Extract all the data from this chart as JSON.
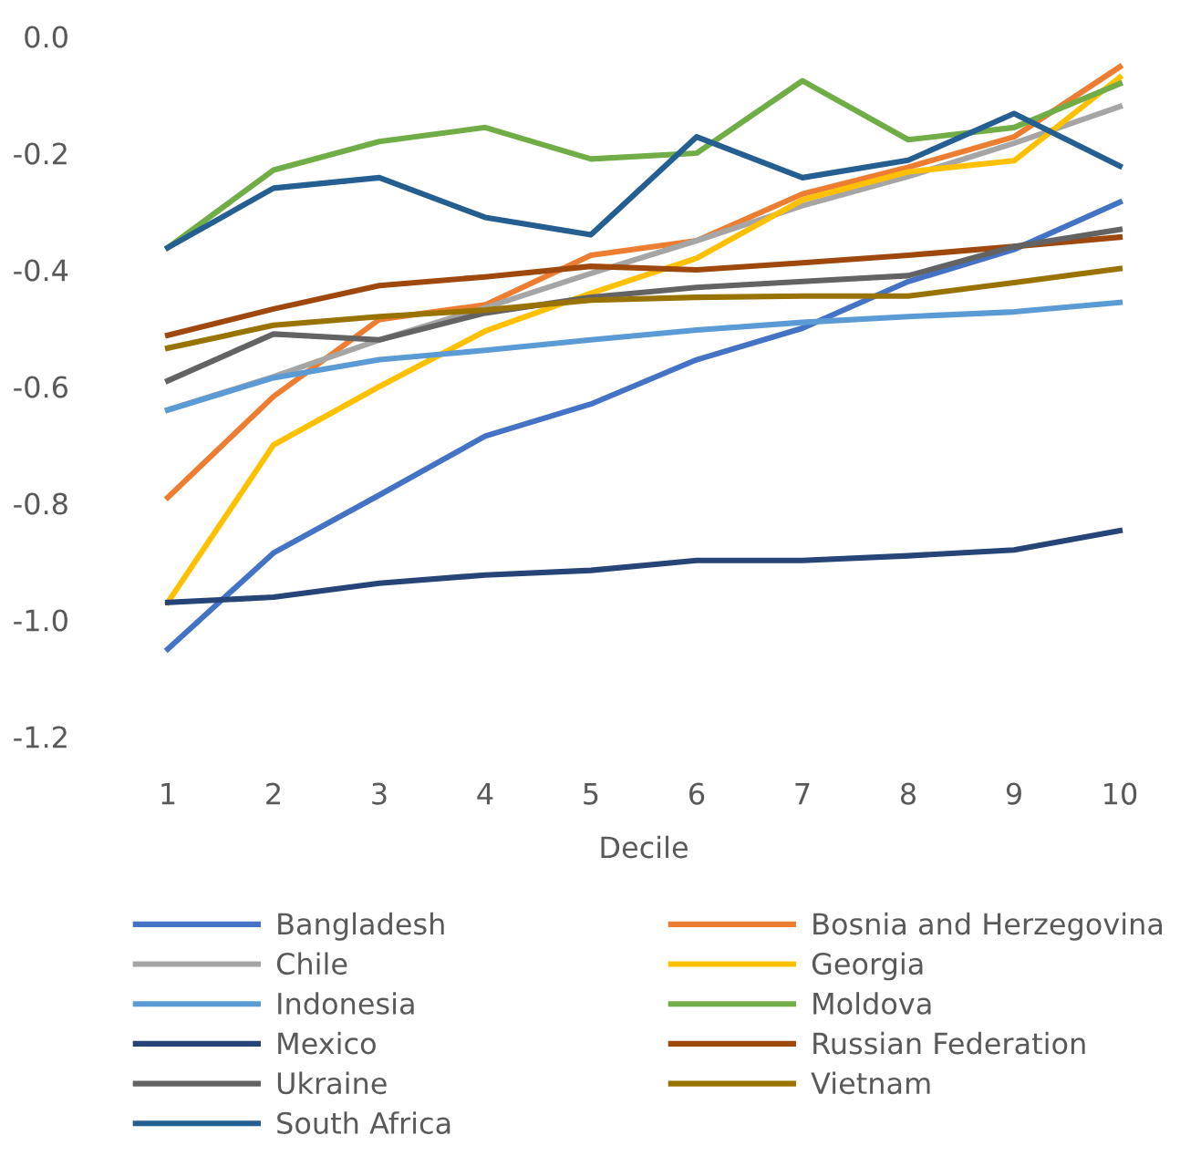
{
  "chart_data": {
    "type": "line",
    "xlabel": "Decile",
    "categories": [
      "1",
      "2",
      "3",
      "4",
      "5",
      "6",
      "7",
      "8",
      "9",
      "10"
    ],
    "ylim": [
      -1.2,
      0.0
    ],
    "yticks": [
      {
        "value": -1.2,
        "label": "-1.2"
      },
      {
        "value": -1.0,
        "label": "-1.0"
      },
      {
        "value": -0.8,
        "label": "-0.8"
      },
      {
        "value": -0.6,
        "label": "-0.6"
      },
      {
        "value": -0.4,
        "label": "-0.4"
      },
      {
        "value": -0.2,
        "label": "-0.2"
      },
      {
        "value": 0.0,
        "label": "0.0"
      }
    ],
    "grid": false,
    "legend": "bottom",
    "marker": "none",
    "line_style": "solid",
    "series": [
      {
        "name": "Bangladesh",
        "color": "#4472c4",
        "values": [
          -1.05,
          -0.885,
          -0.786,
          -0.685,
          -0.63,
          -0.554,
          -0.5,
          -0.42,
          -0.365,
          -0.284
        ]
      },
      {
        "name": "Bosnia and Herzegovina",
        "color": "#ed7d31",
        "values": [
          -0.79,
          -0.617,
          -0.485,
          -0.46,
          -0.375,
          -0.35,
          -0.27,
          -0.224,
          -0.172,
          -0.052
        ]
      },
      {
        "name": "Chile",
        "color": "#a5a5a5",
        "values": [
          -0.64,
          -0.583,
          -0.52,
          -0.465,
          -0.406,
          -0.35,
          -0.29,
          -0.24,
          -0.183,
          -0.12
        ]
      },
      {
        "name": "Georgia",
        "color": "#ffc000",
        "values": [
          -0.97,
          -0.7,
          -0.6,
          -0.505,
          -0.44,
          -0.38,
          -0.28,
          -0.232,
          -0.213,
          -0.07
        ]
      },
      {
        "name": "Indonesia",
        "color": "#5b9bd5",
        "values": [
          -0.64,
          -0.585,
          -0.554,
          -0.538,
          -0.52,
          -0.503,
          -0.49,
          -0.48,
          -0.472,
          -0.456
        ]
      },
      {
        "name": "Moldova",
        "color": "#70ad47",
        "values": [
          -0.362,
          -0.229,
          -0.18,
          -0.156,
          -0.21,
          -0.2,
          -0.076,
          -0.177,
          -0.156,
          -0.081
        ]
      },
      {
        "name": "Mexico",
        "color": "#264478",
        "values": [
          -0.97,
          -0.961,
          -0.937,
          -0.923,
          -0.915,
          -0.898,
          -0.898,
          -0.89,
          -0.88,
          -0.847
        ]
      },
      {
        "name": "Russian Federation",
        "color": "#9e480e",
        "values": [
          -0.512,
          -0.467,
          -0.427,
          -0.412,
          -0.394,
          -0.4,
          -0.388,
          -0.375,
          -0.36,
          -0.344
        ]
      },
      {
        "name": "Ukraine",
        "color": "#636363",
        "values": [
          -0.59,
          -0.51,
          -0.52,
          -0.474,
          -0.447,
          -0.43,
          -0.42,
          -0.41,
          -0.36,
          -0.331
        ]
      },
      {
        "name": "Vietnam",
        "color": "#997300",
        "values": [
          -0.534,
          -0.495,
          -0.48,
          -0.469,
          -0.452,
          -0.447,
          -0.445,
          -0.445,
          -0.422,
          -0.398
        ]
      },
      {
        "name": "South Africa",
        "color": "#255e91",
        "values": [
          -0.362,
          -0.26,
          -0.242,
          -0.31,
          -0.34,
          -0.172,
          -0.242,
          -0.212,
          -0.132,
          -0.222
        ]
      }
    ]
  }
}
